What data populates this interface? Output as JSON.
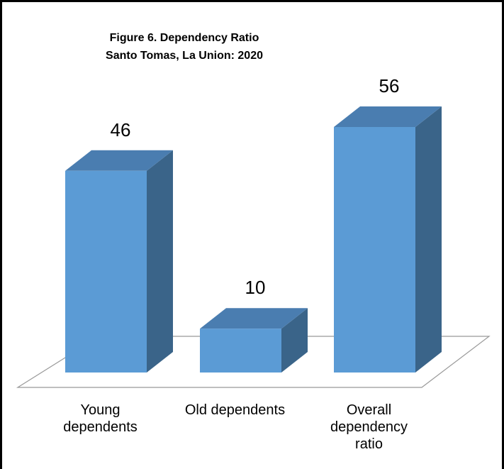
{
  "chart_data": {
    "type": "bar3d",
    "title": "Figure 6. Dependency Ratio",
    "subtitle": "Santo Tomas, La Union: 2020",
    "categories": [
      "Young dependents",
      "Old dependents",
      "Overall dependency ratio"
    ],
    "values": [
      46,
      10,
      56
    ],
    "color": "#5b9bd5"
  }
}
